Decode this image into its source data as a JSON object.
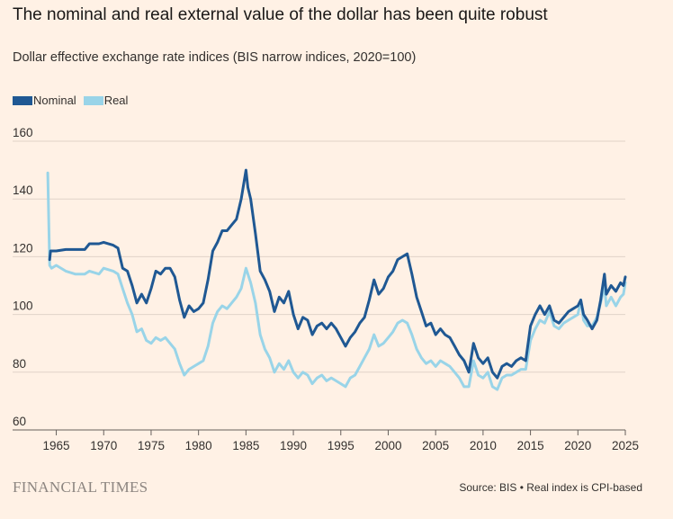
{
  "title": "The nominal and real external value of the dollar has been quite robust",
  "subtitle": "Dollar effective exchange rate indices (BIS narrow indices, 2020=100)",
  "legend": [
    {
      "label": "Nominal",
      "color": "#1f5893"
    },
    {
      "label": "Real",
      "color": "#99d4e8"
    }
  ],
  "brand": "FINANCIAL TIMES",
  "source": "Source: BIS • Real index is CPI-based",
  "chart_data": {
    "type": "line",
    "ylim": [
      60,
      160
    ],
    "yticks": [
      60,
      80,
      100,
      120,
      140,
      160
    ],
    "xlim": [
      1964,
      2025
    ],
    "xticks": [
      1965,
      1970,
      1975,
      1980,
      1985,
      1990,
      1995,
      2000,
      2005,
      2010,
      2015,
      2020,
      2025
    ],
    "grid": true,
    "legend_position": "top-left",
    "series": [
      {
        "name": "Nominal",
        "color": "#1f5893",
        "points": [
          [
            1964.3,
            119
          ],
          [
            1964.4,
            122
          ],
          [
            1965,
            122
          ],
          [
            1966,
            122.5
          ],
          [
            1967,
            122.5
          ],
          [
            1968,
            122.5
          ],
          [
            1968.5,
            124.5
          ],
          [
            1969.5,
            124.5
          ],
          [
            1970,
            125
          ],
          [
            1971,
            124
          ],
          [
            1971.5,
            123
          ],
          [
            1972,
            116
          ],
          [
            1972.5,
            115
          ],
          [
            1973,
            110
          ],
          [
            1973.5,
            104
          ],
          [
            1974,
            107
          ],
          [
            1974.5,
            104
          ],
          [
            1975,
            109
          ],
          [
            1975.5,
            115
          ],
          [
            1976,
            114
          ],
          [
            1976.5,
            116
          ],
          [
            1977,
            116
          ],
          [
            1977.5,
            113
          ],
          [
            1978,
            105
          ],
          [
            1978.5,
            99
          ],
          [
            1979,
            103
          ],
          [
            1979.5,
            101
          ],
          [
            1980,
            102
          ],
          [
            1980.5,
            104
          ],
          [
            1981,
            112
          ],
          [
            1981.5,
            122
          ],
          [
            1982,
            125
          ],
          [
            1982.5,
            129
          ],
          [
            1983,
            129
          ],
          [
            1983.5,
            131
          ],
          [
            1984,
            133
          ],
          [
            1984.5,
            140
          ],
          [
            1985,
            150
          ],
          [
            1985.2,
            144
          ],
          [
            1985.5,
            140
          ],
          [
            1986,
            128
          ],
          [
            1986.5,
            115
          ],
          [
            1987,
            112
          ],
          [
            1987.5,
            108
          ],
          [
            1988,
            101
          ],
          [
            1988.5,
            106
          ],
          [
            1989,
            104
          ],
          [
            1989.5,
            108
          ],
          [
            1990,
            100
          ],
          [
            1990.5,
            95
          ],
          [
            1991,
            99
          ],
          [
            1991.5,
            98
          ],
          [
            1992,
            93
          ],
          [
            1992.5,
            96
          ],
          [
            1993,
            97
          ],
          [
            1993.5,
            95
          ],
          [
            1994,
            97
          ],
          [
            1994.5,
            95
          ],
          [
            1995,
            92
          ],
          [
            1995.5,
            89
          ],
          [
            1996,
            92
          ],
          [
            1996.5,
            94
          ],
          [
            1997,
            97
          ],
          [
            1997.5,
            99
          ],
          [
            1998,
            105
          ],
          [
            1998.5,
            112
          ],
          [
            1999,
            107
          ],
          [
            1999.5,
            109
          ],
          [
            2000,
            113
          ],
          [
            2000.5,
            115
          ],
          [
            2001,
            119
          ],
          [
            2001.5,
            120
          ],
          [
            2002,
            121
          ],
          [
            2002.5,
            114
          ],
          [
            2003,
            106
          ],
          [
            2003.5,
            101
          ],
          [
            2004,
            96
          ],
          [
            2004.5,
            97
          ],
          [
            2005,
            93
          ],
          [
            2005.5,
            95
          ],
          [
            2006,
            93
          ],
          [
            2006.5,
            92
          ],
          [
            2007,
            89
          ],
          [
            2007.5,
            86
          ],
          [
            2008,
            84
          ],
          [
            2008.5,
            80
          ],
          [
            2009,
            90
          ],
          [
            2009.5,
            85
          ],
          [
            2010,
            83
          ],
          [
            2010.5,
            85
          ],
          [
            2011,
            80
          ],
          [
            2011.5,
            78
          ],
          [
            2012,
            82
          ],
          [
            2012.5,
            83
          ],
          [
            2013,
            82
          ],
          [
            2013.5,
            84
          ],
          [
            2014,
            85
          ],
          [
            2014.5,
            84
          ],
          [
            2015,
            96
          ],
          [
            2015.5,
            100
          ],
          [
            2016,
            103
          ],
          [
            2016.5,
            100
          ],
          [
            2017,
            103
          ],
          [
            2017.5,
            98
          ],
          [
            2018,
            97
          ],
          [
            2018.5,
            99
          ],
          [
            2019,
            101
          ],
          [
            2019.5,
            102
          ],
          [
            2020,
            103
          ],
          [
            2020.3,
            105
          ],
          [
            2020.6,
            100
          ],
          [
            2021,
            98
          ],
          [
            2021.5,
            95
          ],
          [
            2022,
            98
          ],
          [
            2022.4,
            105
          ],
          [
            2022.8,
            114
          ],
          [
            2023,
            107
          ],
          [
            2023.5,
            110
          ],
          [
            2024,
            108
          ],
          [
            2024.5,
            111
          ],
          [
            2024.8,
            110
          ],
          [
            2025,
            113
          ]
        ]
      },
      {
        "name": "Real",
        "color": "#99d4e8",
        "points": [
          [
            1964.1,
            149
          ],
          [
            1964.3,
            117
          ],
          [
            1964.5,
            116
          ],
          [
            1965,
            117
          ],
          [
            1966,
            115
          ],
          [
            1967,
            114
          ],
          [
            1968,
            114
          ],
          [
            1968.5,
            115
          ],
          [
            1969.5,
            114
          ],
          [
            1970,
            116
          ],
          [
            1971,
            115
          ],
          [
            1971.5,
            114
          ],
          [
            1972,
            109
          ],
          [
            1972.5,
            104
          ],
          [
            1973,
            100
          ],
          [
            1973.5,
            94
          ],
          [
            1974,
            95
          ],
          [
            1974.5,
            91
          ],
          [
            1975,
            90
          ],
          [
            1975.5,
            92
          ],
          [
            1976,
            91
          ],
          [
            1976.5,
            92
          ],
          [
            1977,
            90
          ],
          [
            1977.5,
            88
          ],
          [
            1978,
            83
          ],
          [
            1978.5,
            79
          ],
          [
            1979,
            81
          ],
          [
            1979.5,
            82
          ],
          [
            1980,
            83
          ],
          [
            1980.5,
            84
          ],
          [
            1981,
            89
          ],
          [
            1981.5,
            97
          ],
          [
            1982,
            101
          ],
          [
            1982.5,
            103
          ],
          [
            1983,
            102
          ],
          [
            1983.5,
            104
          ],
          [
            1984,
            106
          ],
          [
            1984.5,
            109
          ],
          [
            1985,
            116
          ],
          [
            1985.5,
            111
          ],
          [
            1986,
            104
          ],
          [
            1986.5,
            93
          ],
          [
            1987,
            88
          ],
          [
            1987.5,
            85
          ],
          [
            1988,
            80
          ],
          [
            1988.5,
            83
          ],
          [
            1989,
            81
          ],
          [
            1989.5,
            84
          ],
          [
            1990,
            80
          ],
          [
            1990.5,
            78
          ],
          [
            1991,
            80
          ],
          [
            1991.5,
            79
          ],
          [
            1992,
            76
          ],
          [
            1992.5,
            78
          ],
          [
            1993,
            79
          ],
          [
            1993.5,
            77
          ],
          [
            1994,
            78
          ],
          [
            1994.5,
            77
          ],
          [
            1995,
            76
          ],
          [
            1995.5,
            75
          ],
          [
            1996,
            78
          ],
          [
            1996.5,
            79
          ],
          [
            1997,
            82
          ],
          [
            1997.5,
            85
          ],
          [
            1998,
            88
          ],
          [
            1998.5,
            93
          ],
          [
            1999,
            89
          ],
          [
            1999.5,
            90
          ],
          [
            2000,
            92
          ],
          [
            2000.5,
            94
          ],
          [
            2001,
            97
          ],
          [
            2001.5,
            98
          ],
          [
            2002,
            97
          ],
          [
            2002.5,
            93
          ],
          [
            2003,
            88
          ],
          [
            2003.5,
            85
          ],
          [
            2004,
            83
          ],
          [
            2004.5,
            84
          ],
          [
            2005,
            82
          ],
          [
            2005.5,
            84
          ],
          [
            2006,
            83
          ],
          [
            2006.5,
            82
          ],
          [
            2007,
            80
          ],
          [
            2007.5,
            78
          ],
          [
            2008,
            75
          ],
          [
            2008.5,
            75
          ],
          [
            2009,
            84
          ],
          [
            2009.5,
            79
          ],
          [
            2010,
            78
          ],
          [
            2010.5,
            80
          ],
          [
            2011,
            75
          ],
          [
            2011.5,
            74
          ],
          [
            2012,
            78
          ],
          [
            2012.5,
            79
          ],
          [
            2013,
            79
          ],
          [
            2013.5,
            80
          ],
          [
            2014,
            81
          ],
          [
            2014.5,
            81
          ],
          [
            2015,
            91
          ],
          [
            2015.5,
            95
          ],
          [
            2016,
            98
          ],
          [
            2016.5,
            97
          ],
          [
            2017,
            101
          ],
          [
            2017.5,
            96
          ],
          [
            2018,
            95
          ],
          [
            2018.5,
            97
          ],
          [
            2019,
            98
          ],
          [
            2019.5,
            99
          ],
          [
            2020,
            100
          ],
          [
            2020.3,
            105
          ],
          [
            2020.6,
            98
          ],
          [
            2021,
            96
          ],
          [
            2021.5,
            96
          ],
          [
            2022,
            99
          ],
          [
            2022.4,
            104
          ],
          [
            2022.8,
            110
          ],
          [
            2023,
            103
          ],
          [
            2023.5,
            106
          ],
          [
            2024,
            103
          ],
          [
            2024.5,
            106
          ],
          [
            2024.8,
            107
          ],
          [
            2025,
            111
          ]
        ]
      }
    ]
  }
}
